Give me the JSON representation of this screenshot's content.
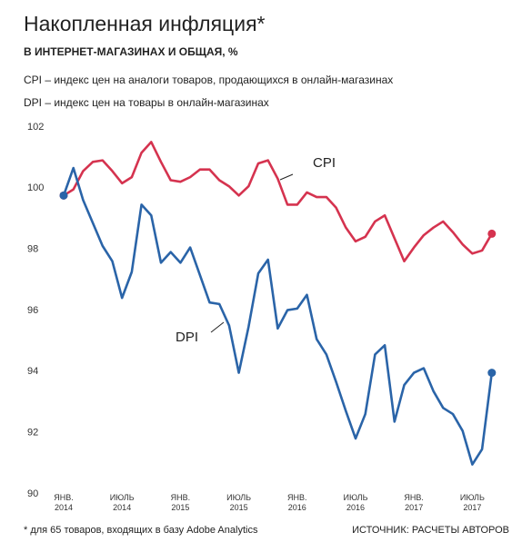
{
  "chart_data": {
    "type": "line",
    "title": "Накопленная инфляция*",
    "subtitle": "В ИНТЕРНЕТ-МАГАЗИНАХ И ОБЩАЯ, %",
    "notes": [
      "CPI – индекс цен на аналоги товаров, продающихся в онлайн-магазинах",
      "DPI – индекс цен на товары в онлайн-магазинах"
    ],
    "footnote": "* для 65 товаров, входящих в базу Adobe Analytics",
    "source": "ИСТОЧНИК: РАСЧЕТЫ АВТОРОВ",
    "categories": [
      "ЯНВ. 2014",
      null,
      null,
      null,
      null,
      null,
      "ИЮЛЬ 2014",
      null,
      null,
      null,
      null,
      null,
      "ЯНВ. 2015",
      null,
      null,
      null,
      null,
      null,
      "ИЮЛЬ 2015",
      null,
      null,
      null,
      null,
      null,
      "ЯНВ. 2016",
      null,
      null,
      null,
      null,
      null,
      "ИЮЛЬ 2016",
      null,
      null,
      null,
      null,
      null,
      "ЯНВ. 2017",
      null,
      null,
      null,
      null,
      null,
      "ИЮЛЬ 2017",
      null,
      null
    ],
    "ylim": [
      90,
      102
    ],
    "yticks": [
      90,
      92,
      94,
      96,
      98,
      100,
      102
    ],
    "grid": false,
    "series": [
      {
        "name": "CPI",
        "color": "#d5334f",
        "values": [
          100.0,
          100.2,
          100.8,
          101.1,
          101.15,
          100.8,
          100.4,
          100.6,
          101.4,
          101.75,
          101.1,
          100.5,
          100.45,
          100.6,
          100.85,
          100.85,
          100.5,
          100.3,
          100.0,
          100.3,
          101.05,
          101.15,
          100.55,
          99.7,
          99.7,
          100.1,
          99.95,
          99.95,
          99.6,
          98.95,
          98.5,
          98.65,
          99.15,
          99.35,
          98.6,
          97.85,
          98.3,
          98.7,
          98.95,
          99.15,
          98.8,
          98.4,
          98.1,
          98.2,
          98.75
        ]
      },
      {
        "name": "DPI",
        "color": "#2a64a8",
        "values": [
          100.0,
          100.9,
          99.85,
          99.1,
          98.35,
          97.85,
          96.65,
          97.5,
          99.7,
          99.35,
          97.8,
          98.15,
          97.8,
          98.3,
          97.4,
          96.5,
          96.45,
          95.75,
          94.2,
          95.7,
          97.45,
          97.9,
          95.65,
          96.25,
          96.3,
          96.75,
          95.3,
          94.8,
          93.9,
          92.95,
          92.05,
          92.85,
          94.8,
          95.1,
          92.6,
          93.8,
          94.2,
          94.35,
          93.6,
          93.05,
          92.85,
          92.3,
          91.2,
          91.7,
          94.2
        ]
      }
    ]
  }
}
